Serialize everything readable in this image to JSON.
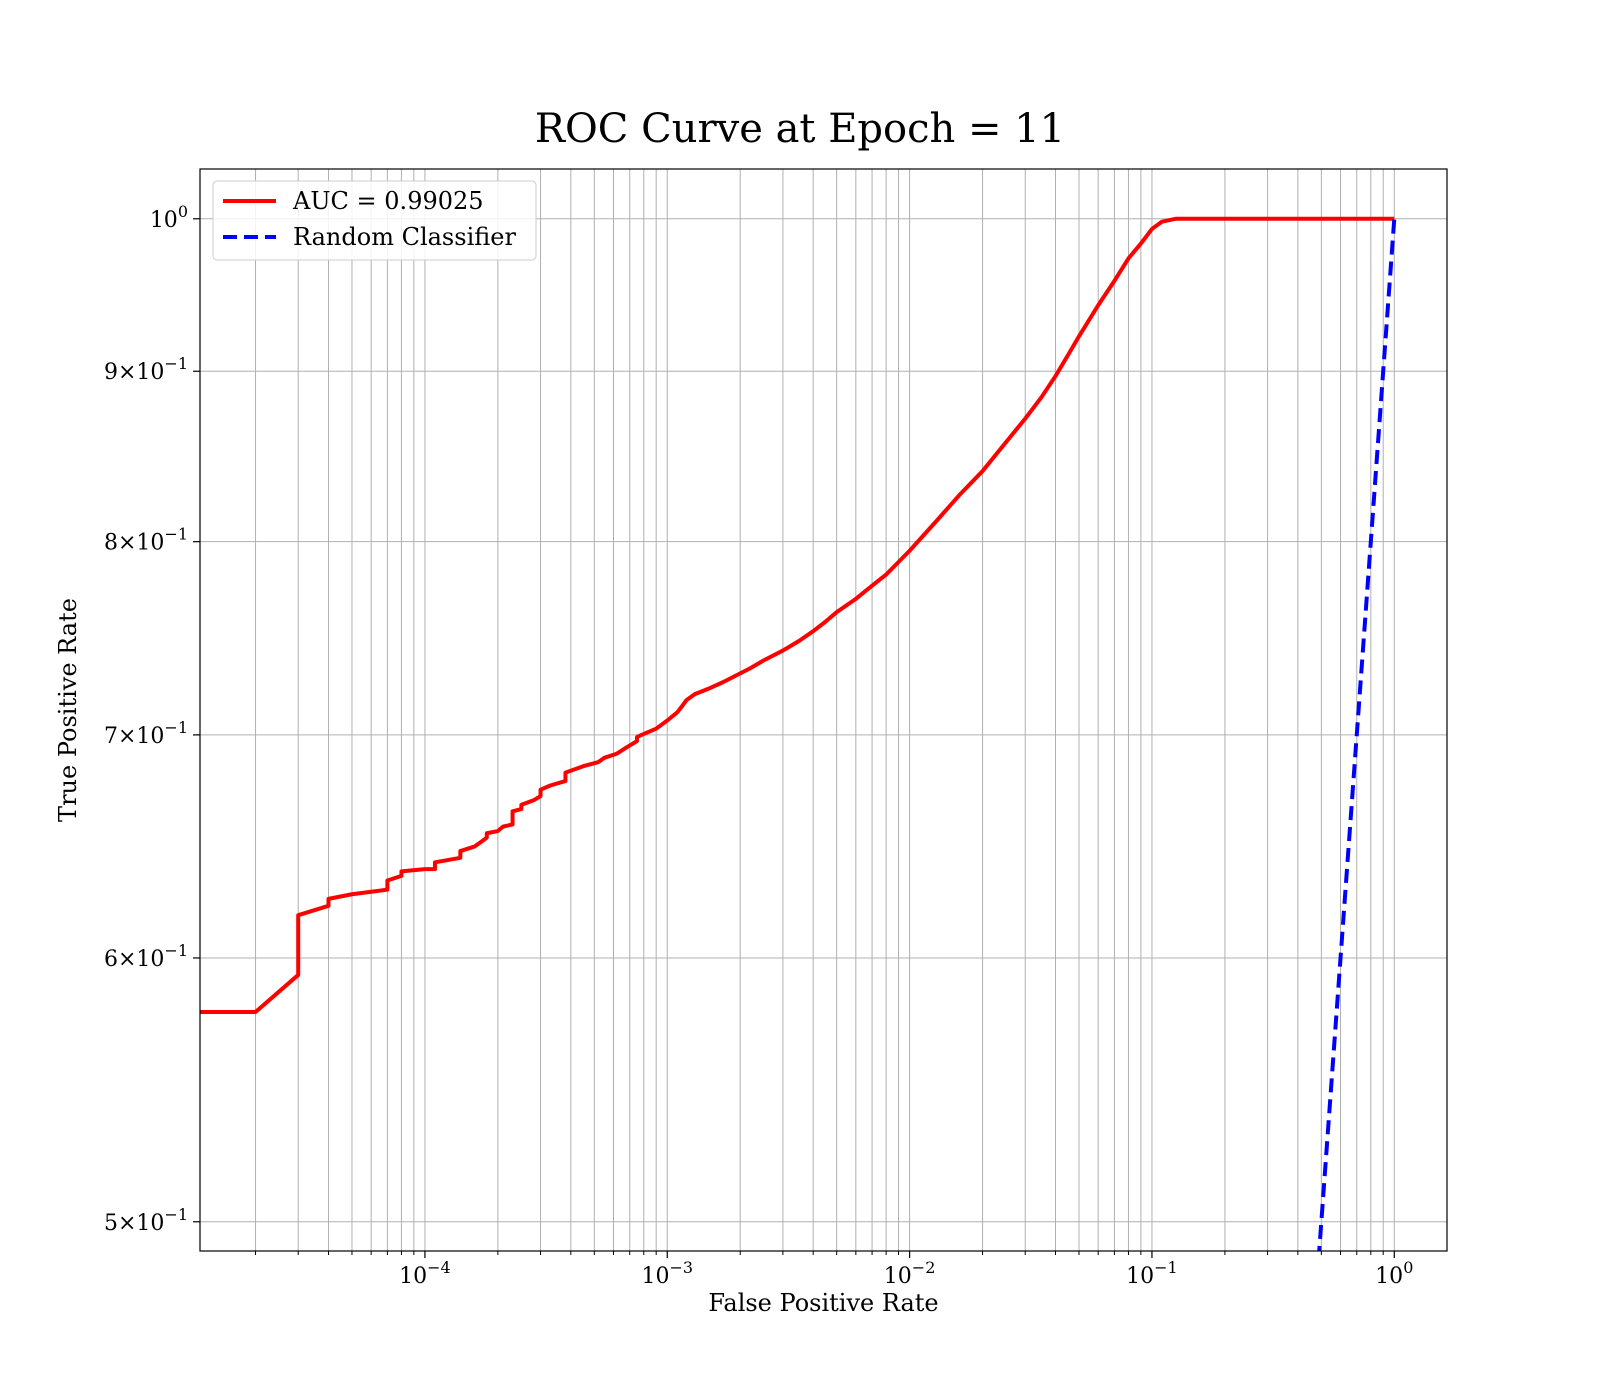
{
  "chart_data": {
    "type": "line",
    "title": "ROC Curve at Epoch = 11",
    "xlabel": "False Positive Rate",
    "ylabel": "True Positive Rate",
    "xscale": "log",
    "yscale": "log",
    "xlim": [
      1.18e-05,
      1.65
    ],
    "ylim": [
      0.49,
      1.035
    ],
    "grid": "both-major-minor-x",
    "legend_position": "top-left",
    "xticks": [
      {
        "base": "10",
        "exp": "−4",
        "value": 0.0001
      },
      {
        "base": "10",
        "exp": "−3",
        "value": 0.001
      },
      {
        "base": "10",
        "exp": "−2",
        "value": 0.01
      },
      {
        "base": "10",
        "exp": "−1",
        "value": 0.1
      },
      {
        "base": "10",
        "exp": "0",
        "value": 1
      }
    ],
    "yticks": [
      {
        "mant": "",
        "base": "10",
        "exp": "0",
        "value": 1.0
      },
      {
        "mant": "9×",
        "base": "10",
        "exp": "−1",
        "value": 0.9
      },
      {
        "mant": "8×",
        "base": "10",
        "exp": "−1",
        "value": 0.8
      },
      {
        "mant": "7×",
        "base": "10",
        "exp": "−1",
        "value": 0.7
      },
      {
        "mant": "6×",
        "base": "10",
        "exp": "−1",
        "value": 0.6
      },
      {
        "mant": "5×",
        "base": "10",
        "exp": "−1",
        "value": 0.5
      }
    ],
    "series": [
      {
        "name": "AUC = 0.99025",
        "color": "#ff0000",
        "style": "solid",
        "x": [
          1.18e-05,
          2e-05,
          3e-05,
          3e-05,
          4e-05,
          4e-05,
          5e-05,
          7e-05,
          7e-05,
          8e-05,
          8e-05,
          0.0001,
          0.00011,
          0.00011,
          0.00014,
          0.00014,
          0.00016,
          0.00017,
          0.00018,
          0.00018,
          0.0002,
          0.00021,
          0.00023,
          0.00023,
          0.00025,
          0.00025,
          0.00028,
          0.0003,
          0.0003,
          0.00033,
          0.00038,
          0.00038,
          0.00045,
          0.00052,
          0.00055,
          0.00062,
          0.00068,
          0.00075,
          0.00075,
          0.00082,
          0.0009,
          0.001,
          0.0011,
          0.00115,
          0.0012,
          0.0013,
          0.0015,
          0.0017,
          0.0019,
          0.0022,
          0.0025,
          0.003,
          0.0035,
          0.004,
          0.0045,
          0.005,
          0.006,
          0.007,
          0.008,
          0.01,
          0.013,
          0.016,
          0.02,
          0.025,
          0.03,
          0.035,
          0.04,
          0.045,
          0.05,
          0.06,
          0.07,
          0.08,
          0.09,
          0.1,
          0.11,
          0.125,
          0.15,
          0.3,
          1.0
        ],
        "y": [
          0.578,
          0.578,
          0.593,
          0.618,
          0.622,
          0.625,
          0.627,
          0.629,
          0.633,
          0.635,
          0.637,
          0.638,
          0.638,
          0.641,
          0.643,
          0.646,
          0.648,
          0.65,
          0.652,
          0.654,
          0.655,
          0.657,
          0.658,
          0.664,
          0.665,
          0.667,
          0.669,
          0.671,
          0.674,
          0.676,
          0.678,
          0.682,
          0.685,
          0.687,
          0.689,
          0.691,
          0.694,
          0.697,
          0.699,
          0.701,
          0.703,
          0.707,
          0.711,
          0.714,
          0.717,
          0.72,
          0.723,
          0.726,
          0.729,
          0.733,
          0.737,
          0.742,
          0.747,
          0.752,
          0.757,
          0.762,
          0.769,
          0.776,
          0.782,
          0.795,
          0.812,
          0.826,
          0.84,
          0.857,
          0.871,
          0.884,
          0.897,
          0.91,
          0.922,
          0.942,
          0.958,
          0.973,
          0.983,
          0.993,
          0.998,
          1.0,
          1.0,
          1.0,
          1.0
        ]
      },
      {
        "name": "Random Classifier",
        "color": "#0000ff",
        "style": "dashed",
        "x": [
          0.487,
          1.0
        ],
        "y": [
          0.487,
          1.0
        ]
      }
    ]
  }
}
